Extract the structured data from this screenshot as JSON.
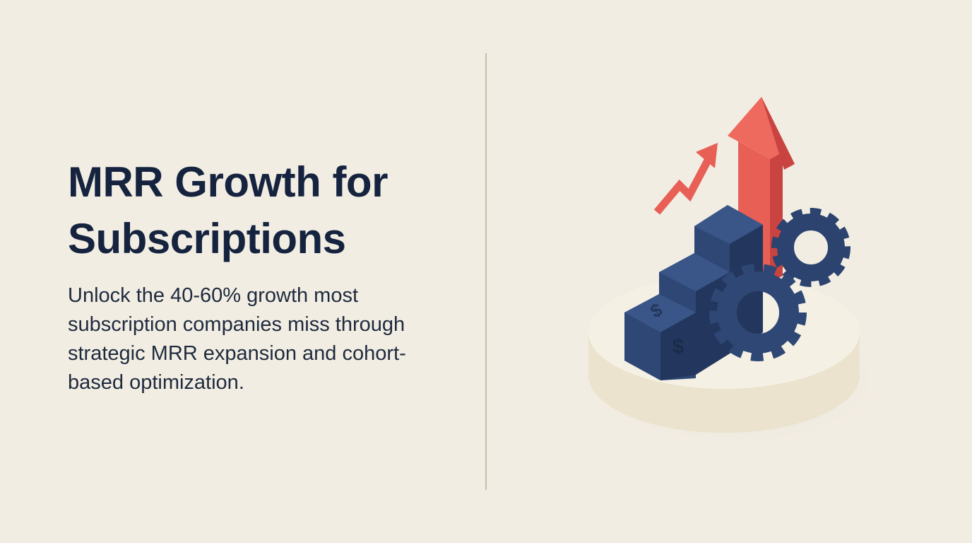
{
  "hero": {
    "title": "MRR Growth for Subscriptions",
    "description": "Unlock the 40-60% growth most subscription companies miss through strategic MRR expansion and cohort-based optimization."
  }
}
